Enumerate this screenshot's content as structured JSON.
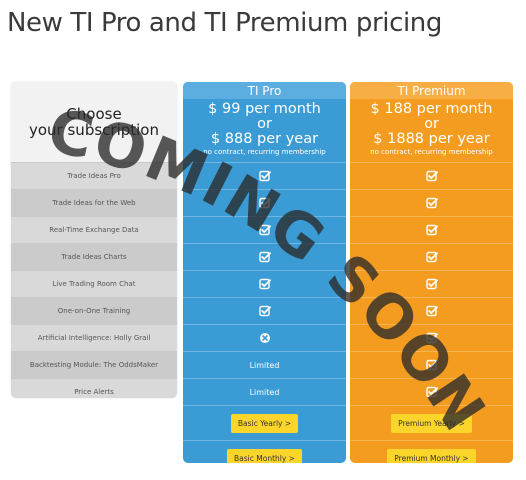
{
  "page": {
    "title": "New TI Pro and TI Premium pricing"
  },
  "features": {
    "heading_line1": "Choose",
    "heading_line2": "your subscription",
    "rows": [
      "Trade Ideas Pro",
      "Trade Ideas for the Web",
      "Real-Time Exchange Data",
      "Trade Ideas Charts",
      "Live Trading Room Chat",
      "One-on-One Training",
      "Artificial Intelligence: Holly Grail",
      "Backtesting Module: The OddsMaker",
      "Price Alerts"
    ]
  },
  "plans": {
    "pro": {
      "name": "TI Pro",
      "price_monthly": "$ 99 per month",
      "price_or": "or",
      "price_yearly": "$ 888 per year",
      "note": "no contract, recurring membership",
      "rows": [
        "check",
        "check",
        "check",
        "check",
        "check",
        "check",
        "cross",
        "Limited",
        "Limited"
      ],
      "btn_yearly": "Basic Yearly >",
      "btn_monthly": "Basic Monthly >"
    },
    "premium": {
      "name": "TI Premium",
      "price_monthly": "$ 188 per month",
      "price_or": "or",
      "price_yearly": "$ 1888 per year",
      "note": "no contract, recurring membership",
      "rows": [
        "check",
        "check",
        "check",
        "check",
        "check",
        "check",
        "check",
        "check",
        "check"
      ],
      "btn_yearly": "Premium Yearly >",
      "btn_monthly": "Premium Monthly >"
    }
  },
  "watermark": {
    "text": "COMING SOON",
    "color": "#2a2a2a"
  },
  "colors": {
    "pro": "#3a9bd5",
    "premium": "#f39c1f",
    "button": "#fcd52b"
  }
}
